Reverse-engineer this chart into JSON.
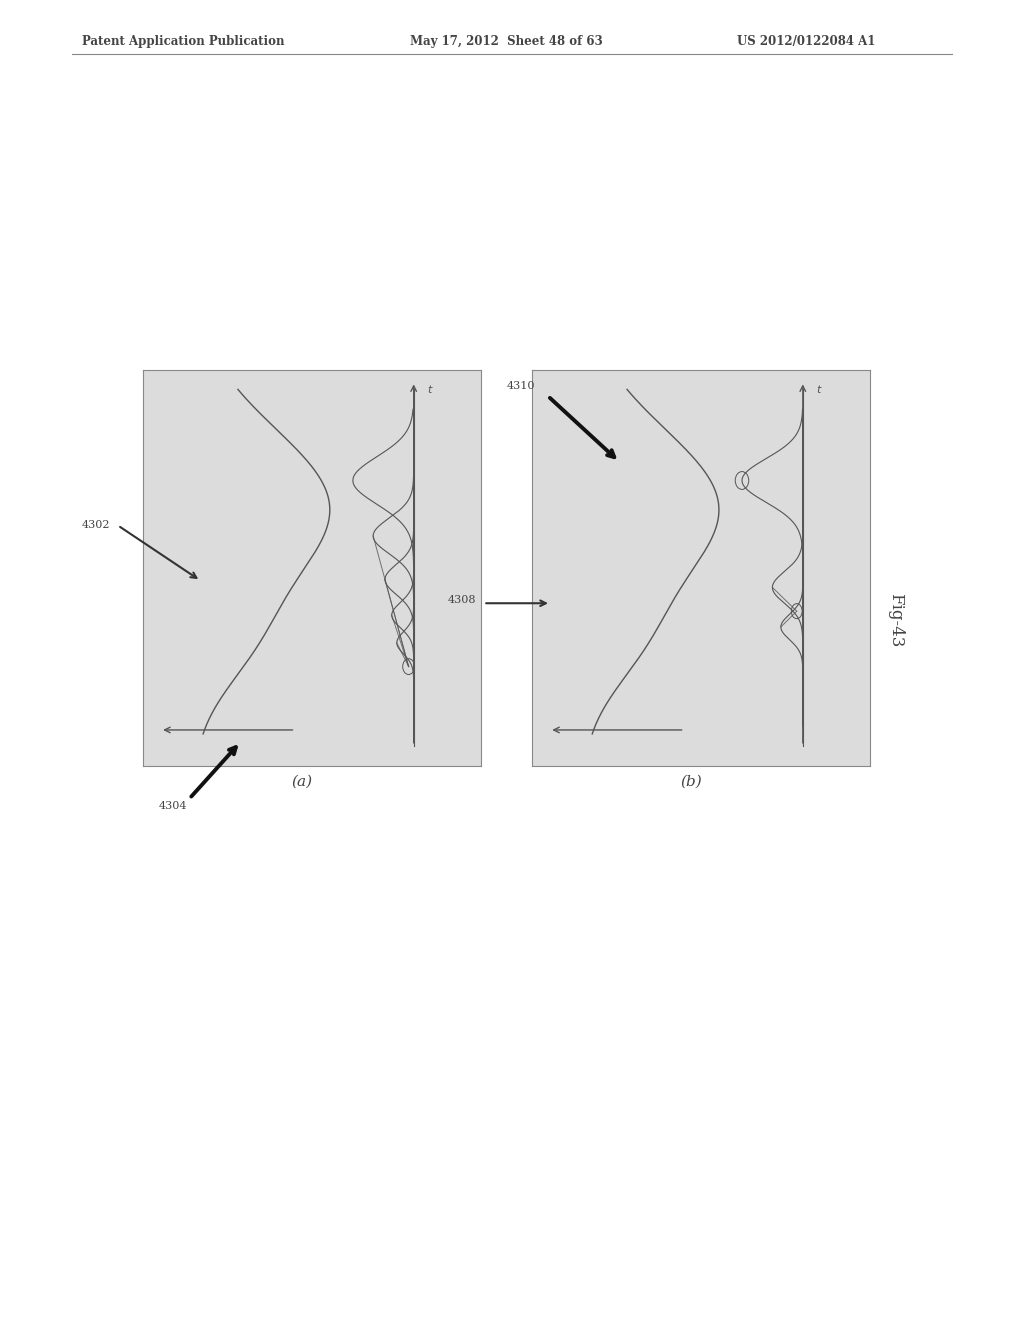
{
  "page_bg": "#ffffff",
  "header_text": "Patent Application Publication",
  "header_date": "May 17, 2012  Sheet 48 of 63",
  "header_patent": "US 2012/0122084 A1",
  "fig_label": "Fig-43",
  "panel_a_label": "(a)",
  "panel_b_label": "(b)",
  "ref_4302": "4302",
  "ref_4304": "4304",
  "ref_4308": "4308",
  "ref_4310": "4310",
  "axis_label_t": "t",
  "text_color": "#444444",
  "line_color": "#555555",
  "panel_bg": "#dcdcdc",
  "header_line_color": "#888888"
}
